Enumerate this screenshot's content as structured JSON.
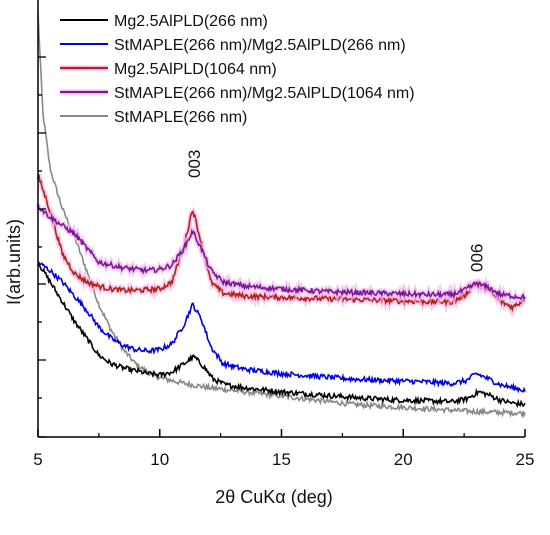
{
  "chart_data": {
    "type": "line",
    "xlabel": "2θ CuKα (deg)",
    "ylabel": "I(arb.units)",
    "xlim": [
      5,
      25
    ],
    "xticks": [
      "5",
      "10",
      "15",
      "20",
      "25"
    ],
    "y_tick_labels_shown": false,
    "grid": false,
    "legend_position": "top-left",
    "annotations": [
      {
        "text": "003",
        "x": 11.4
      },
      {
        "text": "006",
        "x": 23.0
      }
    ],
    "series": [
      {
        "name": "Mg2.5AlPLD(266 nm)",
        "color": "#000000",
        "points": [
          [
            5,
            0.67
          ],
          [
            5.5,
            0.6
          ],
          [
            6,
            0.53
          ],
          [
            6.5,
            0.46
          ],
          [
            7,
            0.4
          ],
          [
            7.5,
            0.34
          ],
          [
            8,
            0.31
          ],
          [
            8.5,
            0.295
          ],
          [
            9,
            0.285
          ],
          [
            9.5,
            0.275
          ],
          [
            10,
            0.27
          ],
          [
            10.5,
            0.28
          ],
          [
            11,
            0.31
          ],
          [
            11.4,
            0.335
          ],
          [
            11.8,
            0.3
          ],
          [
            12.2,
            0.255
          ],
          [
            12.7,
            0.235
          ],
          [
            13.5,
            0.225
          ],
          [
            15,
            0.21
          ],
          [
            16.5,
            0.2
          ],
          [
            18,
            0.19
          ],
          [
            19.5,
            0.182
          ],
          [
            21,
            0.178
          ],
          [
            22,
            0.175
          ],
          [
            22.6,
            0.185
          ],
          [
            23.1,
            0.21
          ],
          [
            23.5,
            0.2
          ],
          [
            24,
            0.18
          ],
          [
            24.5,
            0.17
          ],
          [
            25,
            0.165
          ]
        ]
      },
      {
        "name": "StMAPLE(266 nm)/Mg2.5AlPLD(266 nm)",
        "color": "#0000e0",
        "points": [
          [
            5,
            0.67
          ],
          [
            5.5,
            0.64
          ],
          [
            6,
            0.6
          ],
          [
            6.5,
            0.55
          ],
          [
            7,
            0.5
          ],
          [
            7.5,
            0.44
          ],
          [
            8,
            0.4
          ],
          [
            8.5,
            0.375
          ],
          [
            9,
            0.36
          ],
          [
            9.5,
            0.355
          ],
          [
            10,
            0.36
          ],
          [
            10.5,
            0.38
          ],
          [
            11,
            0.45
          ],
          [
            11.35,
            0.52
          ],
          [
            11.7,
            0.47
          ],
          [
            12.1,
            0.37
          ],
          [
            12.6,
            0.31
          ],
          [
            13.5,
            0.29
          ],
          [
            15,
            0.275
          ],
          [
            16.5,
            0.265
          ],
          [
            18,
            0.255
          ],
          [
            19.5,
            0.25
          ],
          [
            21,
            0.245
          ],
          [
            22,
            0.24
          ],
          [
            22.6,
            0.25
          ],
          [
            23,
            0.275
          ],
          [
            23.4,
            0.26
          ],
          [
            24,
            0.235
          ],
          [
            24.5,
            0.225
          ],
          [
            25,
            0.215
          ]
        ]
      },
      {
        "name": "Mg2.5AlPLD(1064 nm)",
        "color": "#b82010",
        "points": [
          [
            5,
            0.98
          ],
          [
            5.5,
            0.85
          ],
          [
            6,
            0.7
          ],
          [
            6.5,
            0.63
          ],
          [
            7,
            0.6
          ],
          [
            7.5,
            0.585
          ],
          [
            8,
            0.575
          ],
          [
            8.5,
            0.57
          ],
          [
            9,
            0.57
          ],
          [
            10,
            0.575
          ],
          [
            10.5,
            0.6
          ],
          [
            11,
            0.73
          ],
          [
            11.35,
            0.86
          ],
          [
            11.7,
            0.74
          ],
          [
            12.1,
            0.6
          ],
          [
            12.6,
            0.56
          ],
          [
            13.5,
            0.55
          ],
          [
            15,
            0.545
          ],
          [
            17,
            0.54
          ],
          [
            19,
            0.535
          ],
          [
            21,
            0.53
          ],
          [
            22,
            0.53
          ],
          [
            22.5,
            0.55
          ],
          [
            23,
            0.6
          ],
          [
            23.5,
            0.57
          ],
          [
            24,
            0.53
          ],
          [
            24.5,
            0.51
          ],
          [
            25,
            0.54
          ]
        ]
      },
      {
        "name": "StMAPLE(266 nm)/Mg2.5AlPLD(1064 nm)",
        "color": "#7a1a9a",
        "points": [
          [
            5,
            0.87
          ],
          [
            5.5,
            0.83
          ],
          [
            6,
            0.8
          ],
          [
            6.5,
            0.77
          ],
          [
            7,
            0.72
          ],
          [
            7.5,
            0.67
          ],
          [
            8,
            0.66
          ],
          [
            8.5,
            0.65
          ],
          [
            9,
            0.645
          ],
          [
            9.5,
            0.64
          ],
          [
            10,
            0.645
          ],
          [
            10.5,
            0.66
          ],
          [
            11,
            0.72
          ],
          [
            11.35,
            0.78
          ],
          [
            11.7,
            0.72
          ],
          [
            12.1,
            0.64
          ],
          [
            12.6,
            0.6
          ],
          [
            13.5,
            0.585
          ],
          [
            15,
            0.575
          ],
          [
            17,
            0.565
          ],
          [
            19,
            0.56
          ],
          [
            21,
            0.555
          ],
          [
            22,
            0.555
          ],
          [
            22.5,
            0.57
          ],
          [
            23,
            0.595
          ],
          [
            23.5,
            0.58
          ],
          [
            24,
            0.555
          ],
          [
            24.5,
            0.55
          ],
          [
            25,
            0.545
          ]
        ]
      },
      {
        "name": "StMAPLE(266 nm)",
        "color": "#888888",
        "points": [
          [
            5,
            1.55
          ],
          [
            5.2,
            1.2
          ],
          [
            5.5,
            1.0
          ],
          [
            6,
            0.86
          ],
          [
            6.5,
            0.76
          ],
          [
            7,
            0.64
          ],
          [
            7.5,
            0.52
          ],
          [
            8,
            0.43
          ],
          [
            8.5,
            0.36
          ],
          [
            9,
            0.31
          ],
          [
            9.5,
            0.28
          ],
          [
            10,
            0.26
          ],
          [
            11,
            0.24
          ],
          [
            12,
            0.225
          ],
          [
            13,
            0.215
          ],
          [
            14,
            0.205
          ],
          [
            15,
            0.195
          ],
          [
            16,
            0.185
          ],
          [
            17,
            0.175
          ],
          [
            18,
            0.165
          ],
          [
            19,
            0.16
          ],
          [
            20,
            0.155
          ],
          [
            21,
            0.15
          ],
          [
            22,
            0.145
          ],
          [
            23,
            0.14
          ],
          [
            24,
            0.137
          ],
          [
            25,
            0.135
          ]
        ]
      }
    ]
  }
}
